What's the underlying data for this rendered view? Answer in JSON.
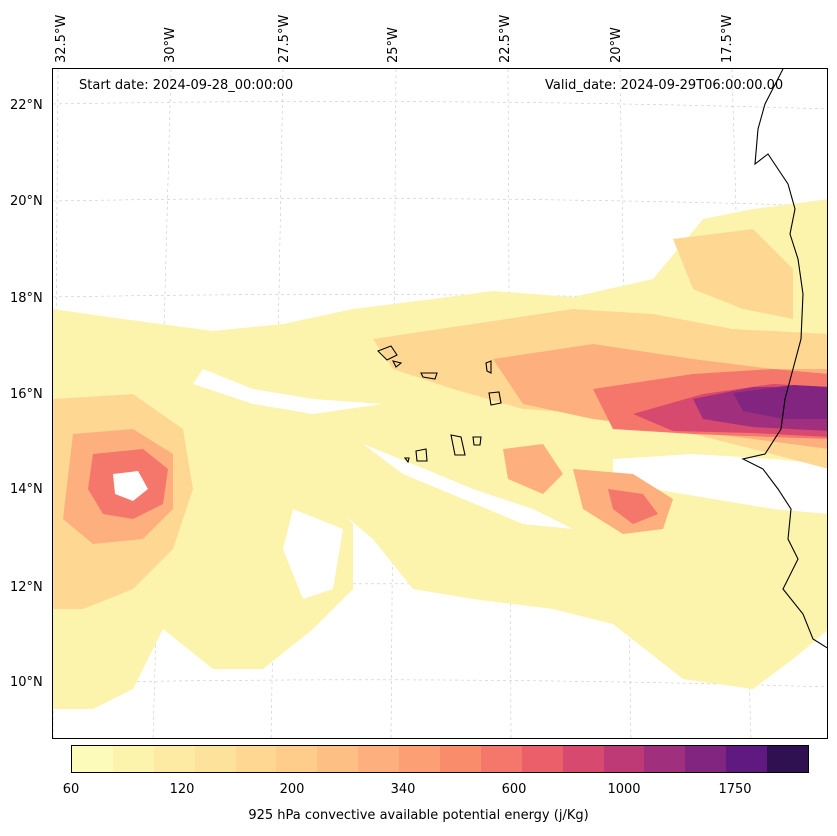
{
  "map": {
    "start_date": "Start date: 2024-09-28_00:00:00",
    "valid_date": "Valid_date: 2024-09-29T06:00:00.00",
    "lat_labels": [
      "22°N",
      "20°N",
      "18°N",
      "16°N",
      "14°N",
      "12°N",
      "10°N"
    ],
    "lon_labels": [
      "32.5°W",
      "30°W",
      "27.5°W",
      "25°W",
      "22.5°W",
      "20°W",
      "17.5°W"
    ]
  },
  "colorbar": {
    "title": "925 hPa convective available potential energy (j/Kg)",
    "ticks": [
      "60",
      "120",
      "200",
      "340",
      "600",
      "1000",
      "1750"
    ],
    "colors": [
      "#fcfbb9",
      "#fcf3ad",
      "#fdeba4",
      "#fde29b",
      "#fed893",
      "#fecd8b",
      "#febf84",
      "#fdb07d",
      "#fd9f74",
      "#f98c6a",
      "#f5766a",
      "#ea5f6a",
      "#d8496f",
      "#bd3a77",
      "#a0307d",
      "#822581",
      "#611982",
      "#2f1152"
    ],
    "ocean_color": "#ffffff",
    "coast_color": "#000000"
  }
}
